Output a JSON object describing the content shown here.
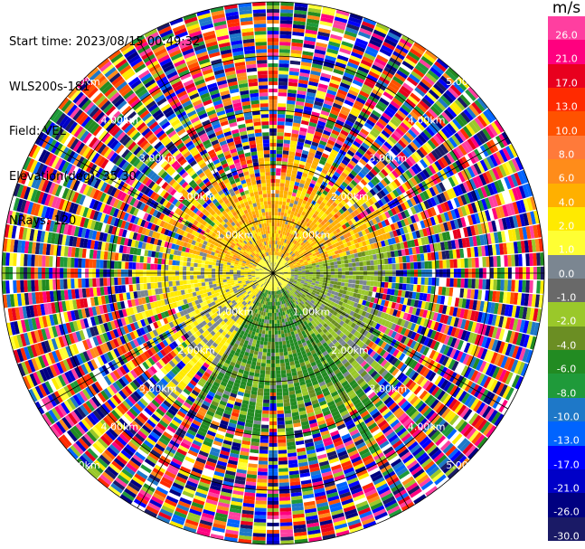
{
  "header": {
    "start_time": "Start time: 2023/08/15 00:49:32",
    "instrument": "WLS200s-181",
    "field": "Field: VEL",
    "elevation": "Elevation(deg): 35.30",
    "nrays": "NRays: 120"
  },
  "range_labels": [
    "1.00km",
    "2.00km",
    "3.00km",
    "4.00km",
    "5.00km"
  ],
  "colorbar": {
    "units": "m/s",
    "levels": [
      {
        "label": "26.0",
        "color": "#ff3fa0"
      },
      {
        "label": "21.0",
        "color": "#ff007f"
      },
      {
        "label": "17.0",
        "color": "#e8001e"
      },
      {
        "label": "13.0",
        "color": "#ff2a00"
      },
      {
        "label": "10.0",
        "color": "#ff5200"
      },
      {
        "label": "8.0",
        "color": "#ff7a3a"
      },
      {
        "label": "6.0",
        "color": "#ff8c1a"
      },
      {
        "label": "4.0",
        "color": "#ffb000"
      },
      {
        "label": "2.0",
        "color": "#ffea00"
      },
      {
        "label": "1.0",
        "color": "#ffff33"
      },
      {
        "label": "0.0",
        "color": "#7b8691"
      },
      {
        "label": "-1.0",
        "color": "#696969"
      },
      {
        "label": "-2.0",
        "color": "#9ac82a"
      },
      {
        "label": "-4.0",
        "color": "#6b8e23"
      },
      {
        "label": "-6.0",
        "color": "#228b22"
      },
      {
        "label": "-8.0",
        "color": "#1f9a3a"
      },
      {
        "label": "-10.0",
        "color": "#1e78c8"
      },
      {
        "label": "-13.0",
        "color": "#0064ff"
      },
      {
        "label": "-17.0",
        "color": "#0000ff"
      },
      {
        "label": "-21.0",
        "color": "#0000c8"
      },
      {
        "label": "-26.0",
        "color": "#000080"
      },
      {
        "label": "-30.0",
        "color": "#1a1a66"
      }
    ]
  }
}
